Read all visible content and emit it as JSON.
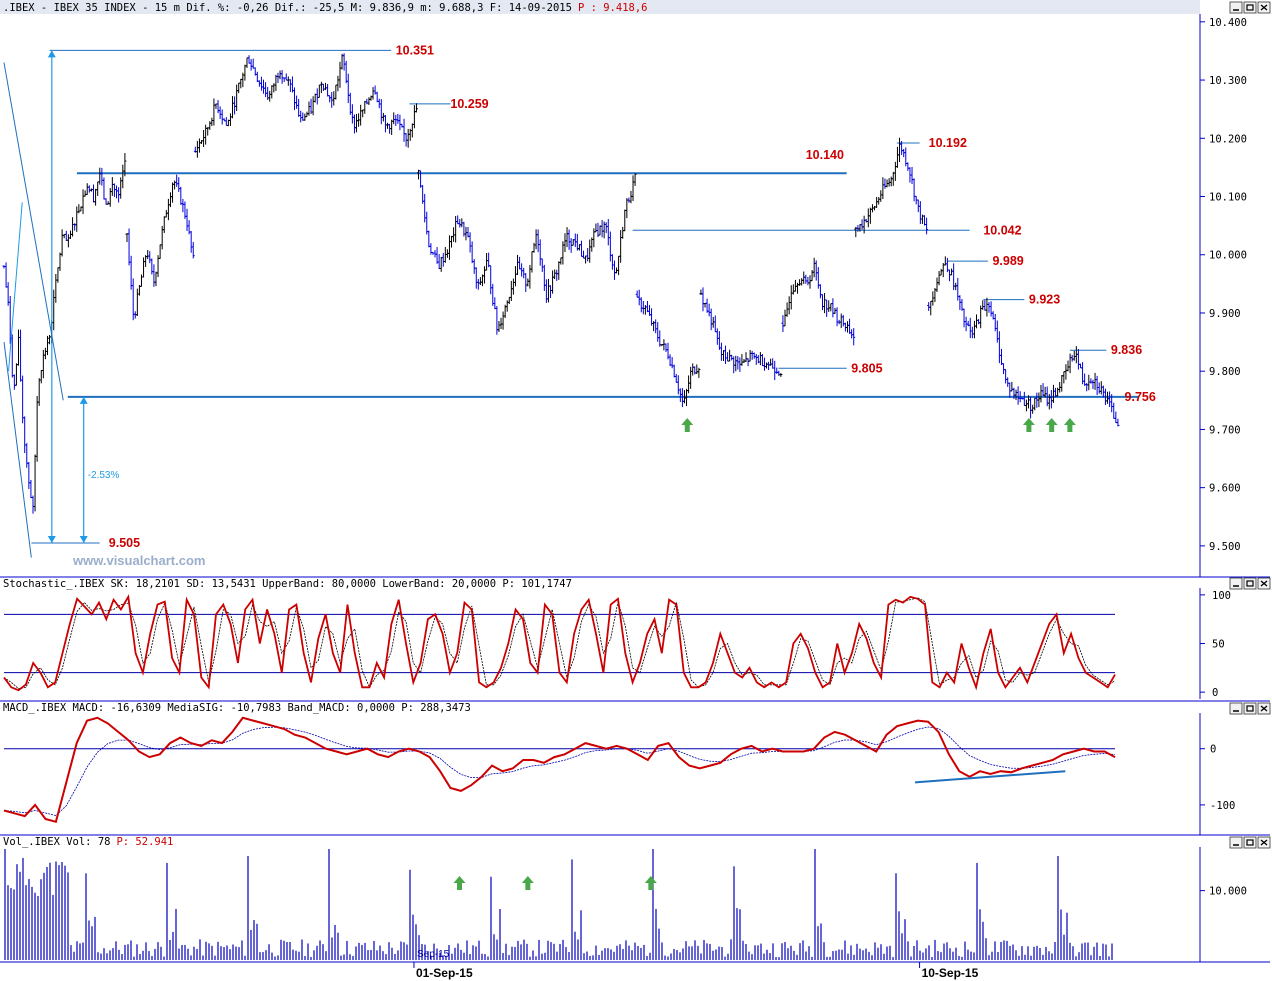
{
  "colors": {
    "background": "#ffffff",
    "frame": "#0000cc",
    "price_up": "#000000",
    "price_down": "#0000dd",
    "level_line": "#1f6fbf",
    "level_label": "#cc0000",
    "measure": "#1e9be6",
    "stoch_line": "#cc0000",
    "macd_line": "#cc0000",
    "volume": "#0000bb",
    "arrow": "#4aa84a",
    "watermark": "#9aaecc",
    "title_bar": "#e3e8f2"
  },
  "icons": [
    "minimize-icon",
    "maximize-icon",
    "close-icon"
  ],
  "header": {
    "text_black": ".IBEX - IBEX 35 INDEX -  15 m Dif. %: -0,26 Dif.: -25,5 M: 9.836,9 m: 9.688,3 F: 14-09-2015",
    "text_red": "P : 9.418,6"
  },
  "stoch_header": "Stochastic_.IBEX SK: 18,2101 SD: 13,5431 UpperBand: 80,0000 LowerBand: 20,0000 P: 101,1747",
  "macd_header": "MACD_.IBEX MACD: -16,6309 MediaSIG: -10,7983 Band_MACD: 0,0000 P: 288,3473",
  "vol_header": {
    "black": "Vol_.IBEX Vol: 78",
    "red": "P: 52.941"
  },
  "watermark": "www.visualchart.com",
  "measure_pct": "-2.53%",
  "date_labels": [
    {
      "label": "01-Sep-15",
      "index": 0
    },
    {
      "label": "10-Sep-15",
      "index": 1
    }
  ],
  "overlay_date": "Sep-15",
  "chart_data": [
    {
      "type": "candlestick",
      "title": ".IBEX - IBEX 35 INDEX - 15 m",
      "ylim": [
        9450,
        10410
      ],
      "yticks": [
        9500,
        9600,
        9700,
        9800,
        9900,
        10000,
        10100,
        10200,
        10300,
        10400
      ],
      "ytick_labels": [
        "9.500",
        "9.600",
        "9.700",
        "9.800",
        "9.900",
        "10.000",
        "10.100",
        "10.200",
        "10.300",
        "10.400"
      ],
      "x_range": [
        0,
        245
      ],
      "x_date_ticks": [
        {
          "x": 90,
          "label": "01-Sep-15"
        },
        {
          "x": 201,
          "label": "10-Sep-15"
        }
      ],
      "segments": [
        {
          "x0": 0,
          "x1": 10,
          "v": [
            9980,
            9900,
            9760,
            9850,
            9700,
            9620,
            9560,
            9780,
            9820,
            9850
          ]
        },
        {
          "x0": 10,
          "x1": 27,
          "v": [
            9860,
            9950,
            10030,
            10020,
            10060,
            10090,
            10120,
            10100,
            10140,
            10080,
            10120,
            10100,
            10160
          ]
        },
        {
          "x0": 27,
          "x1": 42,
          "v": [
            10030,
            9890,
            9950,
            10010,
            9950,
            10020,
            10080,
            10130,
            10100,
            10060,
            9990
          ]
        },
        {
          "x0": 42,
          "x1": 91,
          "v": [
            10180,
            10210,
            10260,
            10220,
            10280,
            10340,
            10300,
            10270,
            10320,
            10290,
            10230,
            10250,
            10300,
            10260,
            10340,
            10220,
            10250,
            10290,
            10220,
            10230,
            10200,
            10250
          ]
        },
        {
          "x0": 91,
          "x1": 139,
          "v": [
            10140,
            10020,
            9980,
            10010,
            10060,
            10030,
            9940,
            9990,
            9870,
            9920,
            9980,
            9950,
            10040,
            9930,
            9970,
            10030,
            10020,
            9990,
            10040,
            10050,
            9960,
            10080,
            10130
          ]
        },
        {
          "x0": 139,
          "x1": 153,
          "v": [
            9920,
            9910,
            9880,
            9850,
            9830,
            9790,
            9740,
            9800,
            9810
          ]
        },
        {
          "x0": 153,
          "x1": 171,
          "v": [
            9930,
            9890,
            9830,
            9820,
            9810,
            9825,
            9820,
            9810,
            9800
          ]
        },
        {
          "x0": 171,
          "x1": 187,
          "v": [
            9870,
            9940,
            9960,
            9950,
            9980,
            9920,
            9910,
            9890,
            9880,
            9860
          ]
        },
        {
          "x0": 187,
          "x1": 203,
          "v": [
            10040,
            10060,
            10080,
            10110,
            10130,
            10190,
            10150,
            10080,
            10040
          ]
        },
        {
          "x0": 203,
          "x1": 245,
          "v": [
            9910,
            9960,
            9989,
            9950,
            9890,
            9860,
            9900,
            9920,
            9850,
            9780,
            9760,
            9750,
            9740,
            9760,
            9750,
            9770,
            9800,
            9836,
            9780,
            9790,
            9770,
            9740,
            9710
          ]
        }
      ],
      "levels": [
        {
          "value": 10351,
          "label": "10.351",
          "x0": 10,
          "x1": 85,
          "label_x": 86,
          "color": "#1f6fbf"
        },
        {
          "value": 10259,
          "label": "10.259",
          "x0": 89,
          "x1": 98,
          "label_x": 98,
          "color": "#1f6fbf"
        },
        {
          "value": 10140,
          "label": "10.140",
          "x0": 16,
          "x1": 185,
          "label_x": 176,
          "color": "#1f6fbf"
        },
        {
          "value": 10192,
          "label": "10.192",
          "x0": 196,
          "x1": 201,
          "label_x": 203,
          "color": "#1f6fbf"
        },
        {
          "value": 10042,
          "label": "10.042",
          "x0": 138,
          "x1": 212,
          "label_x": 215,
          "color": "#1f6fbf"
        },
        {
          "value": 9989,
          "label": "9.989",
          "x0": 207,
          "x1": 216,
          "label_x": 217,
          "color": "#1f6fbf"
        },
        {
          "value": 9923,
          "label": "9.923",
          "x0": 215,
          "x1": 224,
          "label_x": 225,
          "color": "#1f6fbf"
        },
        {
          "value": 9836,
          "label": "9.836",
          "x0": 234,
          "x1": 242,
          "label_x": 243,
          "color": "#1f6fbf"
        },
        {
          "value": 9805,
          "label": "9.805",
          "x0": 170,
          "x1": 185,
          "label_x": 186,
          "color": "#1f6fbf"
        },
        {
          "value": 9756,
          "label": "9.756",
          "x0": 14,
          "x1": 249,
          "label_x": 246,
          "color": "#1f6fbf"
        },
        {
          "value": 9505,
          "label": "9.505",
          "x0": 6,
          "x1": 21,
          "label_x": 23,
          "color": "#1f6fbf"
        }
      ],
      "up_arrows_x": [
        150,
        225,
        230,
        234
      ],
      "measure": {
        "from": 10351,
        "to": 9505,
        "sub_from": 9756,
        "sub_to": 9505,
        "pct_label": "-2.53%"
      }
    },
    {
      "type": "line",
      "title": "Stochastic_.IBEX",
      "series": [
        {
          "name": "SK",
          "last": 18.2101
        },
        {
          "name": "SD",
          "last": 13.5431
        }
      ],
      "bands": {
        "upper": 80,
        "lower": 20
      },
      "ylim": [
        -5,
        105
      ],
      "yticks": [
        0,
        50,
        100
      ],
      "values": [
        15,
        5,
        2,
        8,
        30,
        20,
        5,
        10,
        40,
        70,
        96,
        88,
        80,
        92,
        75,
        95,
        85,
        98,
        40,
        20,
        60,
        90,
        93,
        35,
        20,
        95,
        80,
        15,
        5,
        80,
        90,
        70,
        30,
        85,
        95,
        50,
        85,
        60,
        20,
        85,
        90,
        40,
        10,
        55,
        80,
        40,
        20,
        90,
        40,
        5,
        5,
        30,
        15,
        70,
        95,
        50,
        10,
        30,
        75,
        80,
        60,
        20,
        40,
        92,
        85,
        10,
        5,
        10,
        25,
        50,
        85,
        75,
        30,
        20,
        90,
        80,
        20,
        10,
        60,
        85,
        95,
        60,
        20,
        90,
        96,
        40,
        10,
        30,
        60,
        75,
        40,
        95,
        90,
        20,
        5,
        5,
        10,
        30,
        60,
        40,
        20,
        15,
        25,
        10,
        5,
        10,
        5,
        10,
        50,
        60,
        45,
        20,
        5,
        10,
        50,
        20,
        40,
        70,
        55,
        30,
        15,
        90,
        95,
        92,
        98,
        96,
        90,
        10,
        5,
        20,
        10,
        50,
        25,
        5,
        40,
        65,
        20,
        5,
        15,
        25,
        10,
        30,
        50,
        70,
        80,
        40,
        60,
        35,
        20,
        15,
        10,
        5,
        18
      ]
    },
    {
      "type": "line",
      "title": "MACD_.IBEX",
      "series": [
        {
          "name": "MACD",
          "last": -16.6309
        },
        {
          "name": "MediaSIG",
          "last": -10.7983
        }
      ],
      "band": 0,
      "ylim": [
        -150,
        60
      ],
      "yticks": [
        0,
        -100
      ],
      "values": [
        -110,
        -115,
        -120,
        -100,
        -125,
        -130,
        -60,
        10,
        50,
        55,
        45,
        30,
        15,
        -5,
        -15,
        -10,
        10,
        20,
        10,
        5,
        15,
        10,
        30,
        55,
        50,
        45,
        40,
        35,
        25,
        20,
        10,
        0,
        -5,
        -10,
        -5,
        0,
        -10,
        -15,
        -5,
        0,
        -5,
        -15,
        -40,
        -70,
        -75,
        -65,
        -50,
        -30,
        -40,
        -35,
        -20,
        -20,
        -25,
        -15,
        -10,
        0,
        10,
        5,
        0,
        5,
        0,
        -10,
        -20,
        5,
        10,
        -15,
        -30,
        -35,
        -30,
        -25,
        -10,
        0,
        5,
        -5,
        0,
        -5,
        -5,
        -5,
        0,
        20,
        30,
        25,
        15,
        5,
        -5,
        25,
        40,
        45,
        50,
        48,
        30,
        -10,
        -40,
        -50,
        -40,
        -45,
        -40,
        -42,
        -35,
        -30,
        -25,
        -20,
        -10,
        -5,
        0,
        -5,
        -5,
        -15
      ]
    },
    {
      "type": "bar",
      "title": "Vol_.IBEX",
      "series": [
        {
          "name": "Vol",
          "last": 78
        }
      ],
      "ylim": [
        0,
        16000
      ],
      "yticks": [
        10000
      ],
      "ytick_labels": [
        "10.000"
      ],
      "period": 27,
      "spike_heights": [
        16000,
        12500,
        14000,
        15000,
        16000,
        13000,
        12000,
        14500,
        16000,
        13500
      ],
      "up_arrows_x": [
        100,
        115,
        142
      ]
    }
  ]
}
